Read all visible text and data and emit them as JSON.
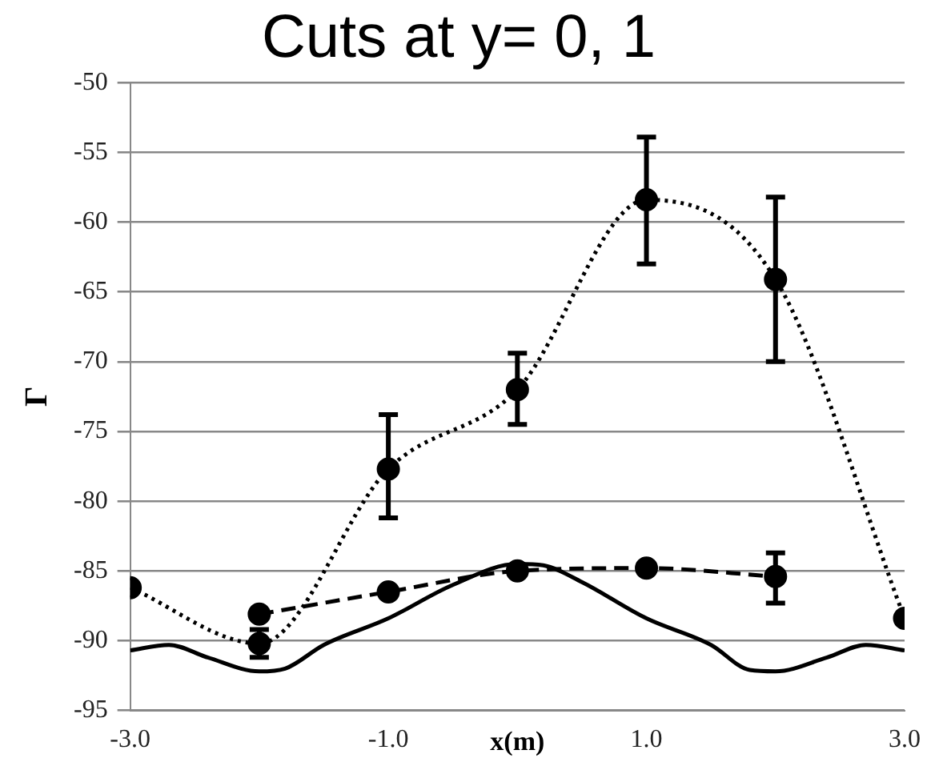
{
  "chart_data": {
    "type": "line",
    "title": "Cuts at y= 0, 1",
    "xlabel": "x(m)",
    "ylabel": "Γ",
    "xlim": [
      -3,
      3
    ],
    "xticks": [
      {
        "value": -3,
        "label": "-3.0"
      },
      {
        "value": -1,
        "label": "-1.0"
      },
      {
        "value": 1,
        "label": "1.0"
      },
      {
        "value": 3,
        "label": "3.0"
      }
    ],
    "ylim": [
      -95,
      -50
    ],
    "yticks": [
      -95,
      -90,
      -85,
      -80,
      -75,
      -70,
      -65,
      -60,
      -55,
      -50
    ],
    "grid": "y",
    "legend": false,
    "series": [
      {
        "color": "#000000",
        "marker": "circle",
        "line_style": "dotted",
        "x": [
          -3,
          -2,
          -1,
          0,
          1,
          2,
          3
        ],
        "values": [
          -86.2,
          -90.2,
          -77.7,
          -72,
          -58.4,
          -64.1,
          -88.4
        ],
        "errors": [
          null,
          1,
          [
            -81.2,
            -73.8
          ],
          [
            -74.5,
            -69.4
          ],
          [
            -63,
            -53.9
          ],
          [
            -70,
            -58.2
          ],
          null
        ]
      },
      {
        "color": "#000000",
        "marker": "circle",
        "line_style": "dashed",
        "x": [
          -2,
          -1,
          0,
          1,
          2
        ],
        "values": [
          -88.1,
          -86.5,
          -85,
          -84.8,
          -85.4
        ],
        "errors": [
          null,
          null,
          null,
          null,
          [
            -87.3,
            -83.7
          ]
        ]
      },
      {
        "color": "#000000",
        "marker": "none",
        "line_style": "solid",
        "x": [
          -3,
          -2.7,
          -2.4,
          -2,
          -1.8,
          -1.5,
          -1,
          -0.5,
          0,
          0.2,
          0.5,
          1,
          1.5,
          1.8,
          2,
          2.4,
          2.7,
          3
        ],
        "values": [
          -90.7,
          -90.3,
          -91.2,
          -92.2,
          -92,
          -90.3,
          -88.4,
          -86,
          -84.5,
          -84.6,
          -85.8,
          -88.4,
          -90.3,
          -92.1,
          -92.2,
          -91.2,
          -90.3,
          -90.7
        ]
      }
    ]
  }
}
